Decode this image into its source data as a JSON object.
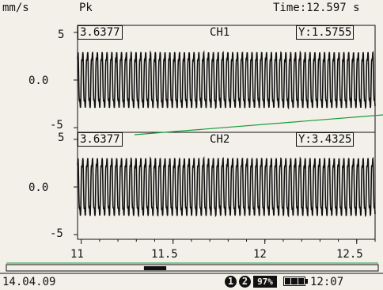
{
  "header": {
    "units": "mm/s",
    "mode": "Pk",
    "time_label": "Time:12.597 s"
  },
  "channels": [
    {
      "name": "CH1",
      "left_value": "3.6377",
      "cursor_value": "Y:1.5755",
      "y_ticks": [
        "5",
        "0.0",
        "-5"
      ],
      "waveform": {
        "type": "line",
        "frequency_cycles_per_unit": 38,
        "amplitude": 2.9,
        "x_range": [
          10.98,
          12.6
        ],
        "y_range": [
          -5.5,
          5.5
        ]
      }
    },
    {
      "name": "CH2",
      "left_value": "3.6377",
      "cursor_value": "Y:3.4325",
      "y_ticks": [
        "5",
        "0.0",
        "-5"
      ],
      "waveform": {
        "type": "line",
        "frequency_cycles_per_unit": 38,
        "amplitude": 3.0,
        "x_range": [
          10.98,
          12.6
        ],
        "y_range": [
          -5.5,
          5.5
        ]
      }
    }
  ],
  "chart_data": {
    "type": "line",
    "x_ticks": [
      "11",
      "11.5",
      "12",
      "12.5"
    ],
    "x_tick_values": [
      11,
      11.5,
      12,
      12.5
    ],
    "xlim": [
      10.98,
      12.6
    ],
    "ylim": [
      -5.5,
      5.5
    ],
    "series": [
      {
        "channel": "CH1",
        "kind": "sinusoid",
        "amplitude": 2.9,
        "cycles_per_unit": 38
      },
      {
        "channel": "CH2",
        "kind": "sinusoid",
        "amplitude": 3.0,
        "cycles_per_unit": 38
      }
    ],
    "cursor_line_color": "#1a9a3a"
  },
  "scrollbar": {
    "thumb_start_fraction": 0.37,
    "thumb_end_fraction": 0.43
  },
  "status": {
    "date": "14.04.09",
    "channel1_badge": "1",
    "channel2_badge": "2",
    "percent": "97%",
    "battery_icon": "battery-icon",
    "time": "12:07"
  }
}
